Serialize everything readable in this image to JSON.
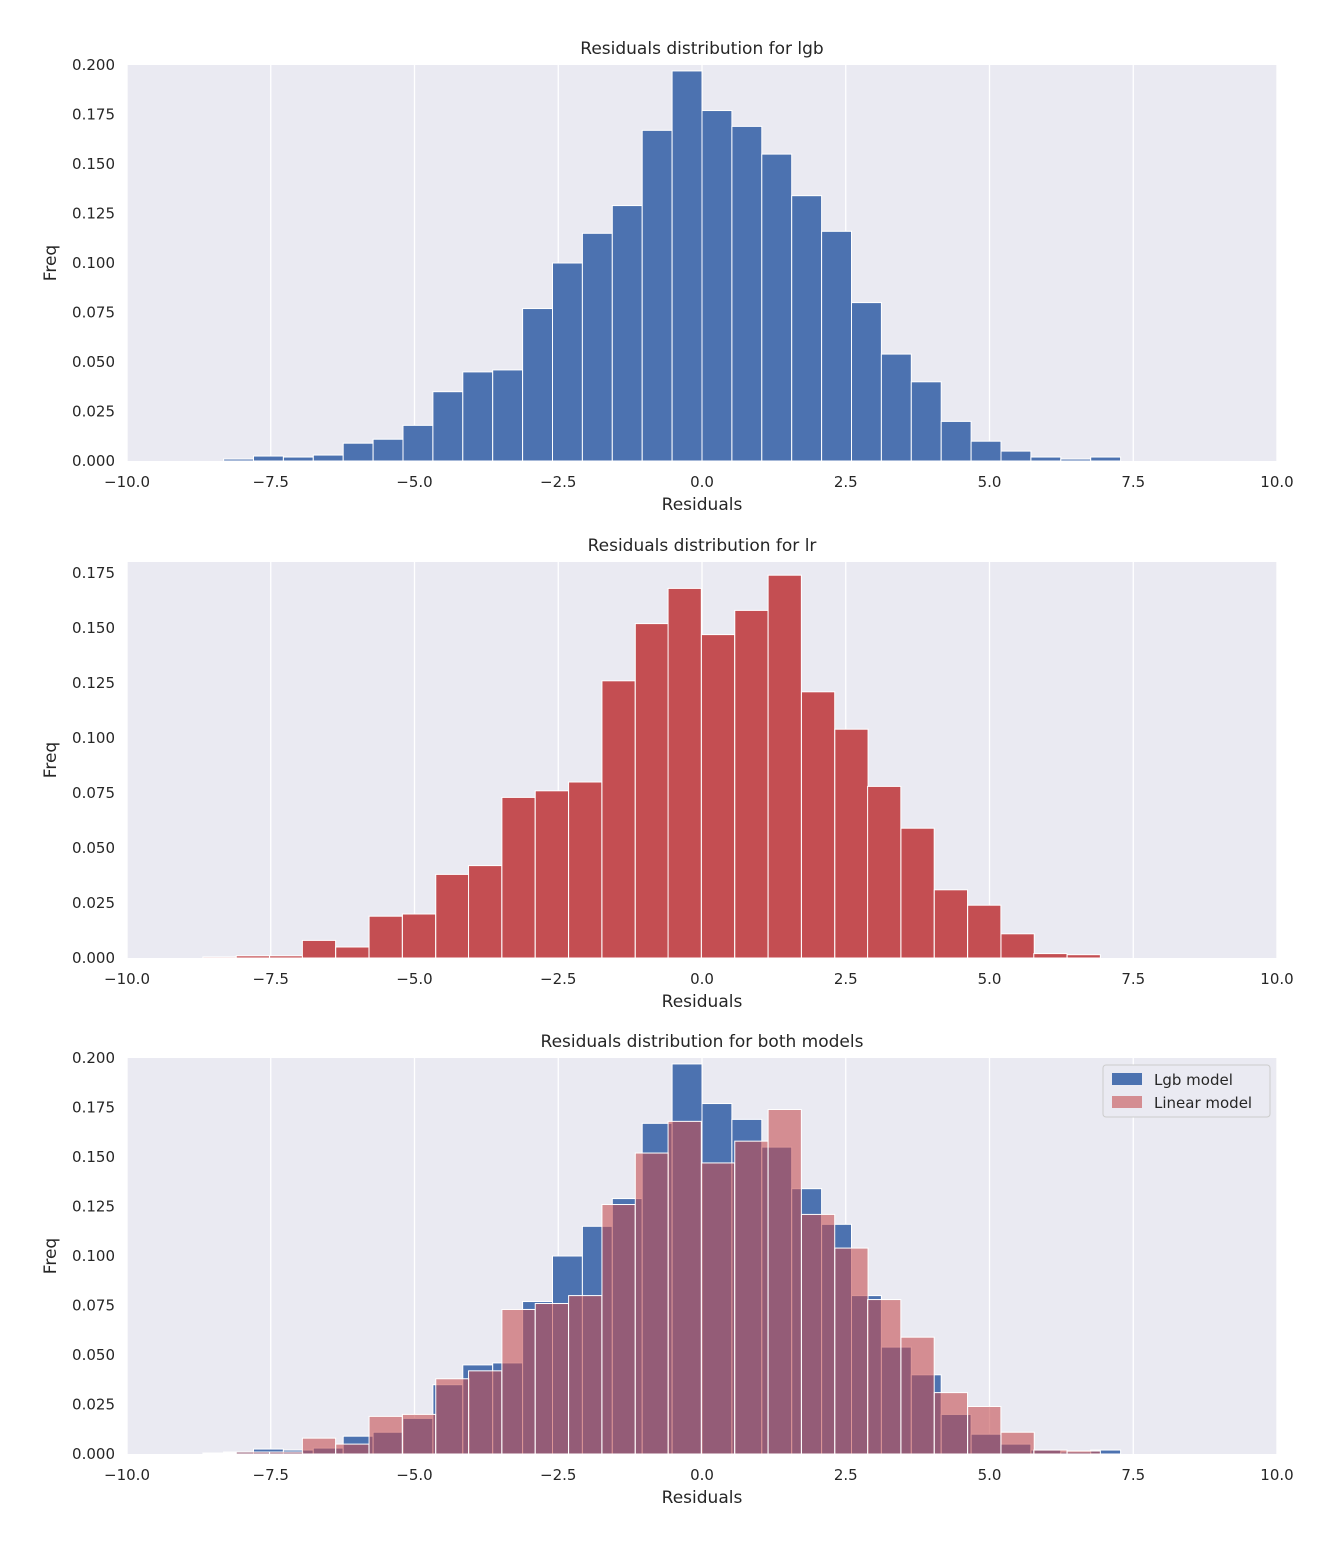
{
  "colors": {
    "background": "#eaeaf2",
    "grid": "#ffffff",
    "lgb": "#4c72b0",
    "lr": "#c44e52",
    "lr_overlay": "#c44e52",
    "lr_overlay_opacity": 0.6
  },
  "chart_data": [
    {
      "type": "bar",
      "title": "Residuals distribution for lgb",
      "xlabel": "Residuals",
      "ylabel": "Freq",
      "xlim": [
        -10,
        10
      ],
      "ylim": [
        0,
        0.2
      ],
      "xticks": [
        "−10.0",
        "−7.5",
        "−5.0",
        "−2.5",
        "0.0",
        "2.5",
        "5.0",
        "7.5",
        "10.0"
      ],
      "yticks": [
        "0.000",
        "0.025",
        "0.050",
        "0.075",
        "0.100",
        "0.125",
        "0.150",
        "0.175",
        "0.200"
      ],
      "grid": "x only",
      "series": [
        {
          "bin_width": 0.52,
          "bin_left": [
            -8.32,
            -7.8,
            -7.28,
            -6.76,
            -6.24,
            -5.72,
            -5.2,
            -4.68,
            -4.16,
            -3.64,
            -3.12,
            -2.6,
            -2.08,
            -1.56,
            -1.04,
            -0.52,
            0.0,
            0.52,
            1.04,
            1.56,
            2.08,
            2.6,
            3.12,
            3.64,
            4.16,
            4.68,
            5.2,
            5.72,
            6.24,
            6.76
          ],
          "values": [
            0.001,
            0.0025,
            0.002,
            0.003,
            0.009,
            0.011,
            0.018,
            0.035,
            0.045,
            0.046,
            0.077,
            0.1,
            0.115,
            0.129,
            0.167,
            0.197,
            0.177,
            0.169,
            0.155,
            0.134,
            0.116,
            0.08,
            0.054,
            0.04,
            0.02,
            0.01,
            0.005,
            0.002,
            0.001,
            0.002
          ]
        }
      ]
    },
    {
      "type": "bar",
      "title": "Residuals distribution for lr",
      "xlabel": "Residuals",
      "ylabel": "Freq",
      "xlim": [
        -10,
        10
      ],
      "ylim": [
        0,
        0.18
      ],
      "xticks": [
        "−10.0",
        "−7.5",
        "−5.0",
        "−2.5",
        "0.0",
        "2.5",
        "5.0",
        "7.5",
        "10.0"
      ],
      "yticks": [
        "0.000",
        "0.025",
        "0.050",
        "0.075",
        "0.100",
        "0.125",
        "0.150",
        "0.175"
      ],
      "grid": "x only",
      "series": [
        {
          "bin_width": 0.578,
          "bin_left": [
            -8.68,
            -8.1,
            -7.52,
            -6.95,
            -6.37,
            -5.79,
            -5.21,
            -4.63,
            -4.06,
            -3.48,
            -2.9,
            -2.32,
            -1.74,
            -1.16,
            -0.59,
            -0.01,
            0.57,
            1.15,
            1.73,
            2.31,
            2.88,
            3.46,
            4.04,
            4.62,
            5.2,
            5.77,
            6.35
          ],
          "values": [
            0.0005,
            0.001,
            0.001,
            0.008,
            0.005,
            0.019,
            0.02,
            0.038,
            0.042,
            0.073,
            0.076,
            0.08,
            0.126,
            0.152,
            0.168,
            0.147,
            0.158,
            0.174,
            0.121,
            0.104,
            0.078,
            0.059,
            0.031,
            0.024,
            0.011,
            0.002,
            0.0015
          ]
        }
      ]
    },
    {
      "type": "bar",
      "title": "Residuals distribution for both models",
      "xlabel": "Residuals",
      "ylabel": "Freq",
      "xlim": [
        -10,
        10
      ],
      "ylim": [
        0,
        0.2
      ],
      "xticks": [
        "−10.0",
        "−7.5",
        "−5.0",
        "−2.5",
        "0.0",
        "2.5",
        "5.0",
        "7.5",
        "10.0"
      ],
      "yticks": [
        "0.000",
        "0.025",
        "0.050",
        "0.075",
        "0.100",
        "0.125",
        "0.150",
        "0.175",
        "0.200"
      ],
      "grid": "x only",
      "legend_position": "top-right",
      "series": [
        {
          "name": "Lgb model",
          "bin_width": 0.52,
          "bin_left": [
            -8.32,
            -7.8,
            -7.28,
            -6.76,
            -6.24,
            -5.72,
            -5.2,
            -4.68,
            -4.16,
            -3.64,
            -3.12,
            -2.6,
            -2.08,
            -1.56,
            -1.04,
            -0.52,
            0.0,
            0.52,
            1.04,
            1.56,
            2.08,
            2.6,
            3.12,
            3.64,
            4.16,
            4.68,
            5.2,
            5.72,
            6.24,
            6.76
          ],
          "values": [
            0.001,
            0.0025,
            0.002,
            0.003,
            0.009,
            0.011,
            0.018,
            0.035,
            0.045,
            0.046,
            0.077,
            0.1,
            0.115,
            0.129,
            0.167,
            0.197,
            0.177,
            0.169,
            0.155,
            0.134,
            0.116,
            0.08,
            0.054,
            0.04,
            0.02,
            0.01,
            0.005,
            0.002,
            0.001,
            0.002
          ]
        },
        {
          "name": "Linear model",
          "bin_width": 0.578,
          "bin_left": [
            -8.68,
            -8.1,
            -7.52,
            -6.95,
            -6.37,
            -5.79,
            -5.21,
            -4.63,
            -4.06,
            -3.48,
            -2.9,
            -2.32,
            -1.74,
            -1.16,
            -0.59,
            -0.01,
            0.57,
            1.15,
            1.73,
            2.31,
            2.88,
            3.46,
            4.04,
            4.62,
            5.2,
            5.77,
            6.35
          ],
          "values": [
            0.0005,
            0.001,
            0.001,
            0.008,
            0.005,
            0.019,
            0.02,
            0.038,
            0.042,
            0.073,
            0.076,
            0.08,
            0.126,
            0.152,
            0.168,
            0.147,
            0.158,
            0.174,
            0.121,
            0.104,
            0.078,
            0.059,
            0.031,
            0.024,
            0.011,
            0.002,
            0.0015
          ]
        }
      ]
    }
  ]
}
